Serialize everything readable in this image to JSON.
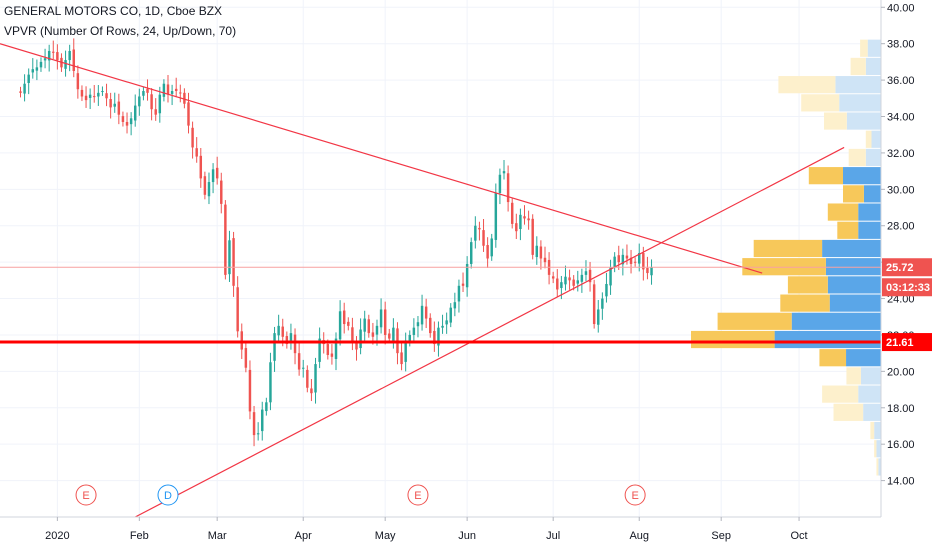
{
  "header": {
    "symbol_line": "GENERAL MOTORS CO, 1D, Cboe BZX",
    "indicator_line": "VPVR (Number Of Rows, 24, Up/Down, 70)"
  },
  "colors": {
    "up": "#26a69a",
    "down": "#ef5350",
    "trendline": "#f23645",
    "last_price_badge": "#ef5350",
    "support_line": "#ff0000",
    "vp_up": "#5aa6e8",
    "vp_down": "#f7c85a",
    "vp_up_light": "#cfe4f6",
    "vp_down_light": "#fdf0cc"
  },
  "price_badges": {
    "last_price": "25.72",
    "countdown": "03:12:33",
    "level": "21.61"
  },
  "event_markers": [
    {
      "label": "E",
      "date_index": 16,
      "kind": "earnings"
    },
    {
      "label": "D",
      "date_index": 36,
      "kind": "dividend"
    },
    {
      "label": "E",
      "date_index": 97,
      "kind": "earnings"
    },
    {
      "label": "E",
      "date_index": 150,
      "kind": "earnings"
    }
  ],
  "chart_data": {
    "type": "candlestick",
    "y_axis": {
      "ticks": [
        "14.00",
        "16.00",
        "18.00",
        "20.00",
        "22.00",
        "24.00",
        "26.00",
        "28.00",
        "30.00",
        "32.00",
        "34.00",
        "36.00",
        "38.00",
        "40.00"
      ],
      "range": [
        12,
        40.4
      ]
    },
    "x_axis": {
      "ticks": [
        {
          "label": "2020",
          "index": 9
        },
        {
          "label": "Feb",
          "index": 29
        },
        {
          "label": "Mar",
          "index": 48
        },
        {
          "label": "Apr",
          "index": 69
        },
        {
          "label": "May",
          "index": 89
        },
        {
          "label": "Jun",
          "index": 109
        },
        {
          "label": "Jul",
          "index": 130
        },
        {
          "label": "Aug",
          "index": 151
        },
        {
          "label": "Sep",
          "index": 171
        },
        {
          "label": "Oct",
          "index": 190
        }
      ],
      "range": [
        -5,
        210
      ]
    },
    "closes": [
      35.3,
      35.8,
      36.3,
      36.6,
      36.7,
      37.0,
      37.2,
      37.6,
      37.5,
      37.1,
      36.7,
      37.1,
      37.6,
      36.5,
      35.5,
      35.1,
      34.9,
      35.2,
      35.1,
      35.3,
      35.4,
      35.0,
      34.5,
      34.7,
      34.1,
      33.7,
      33.5,
      33.9,
      34.6,
      35.1,
      35.4,
      35.3,
      34.4,
      34.1,
      35.2,
      35.8,
      35.2,
      35.4,
      35.4,
      35.3,
      34.7,
      33.5,
      32.3,
      31.8,
      30.6,
      29.7,
      30.4,
      31.1,
      30.6,
      29.2,
      25.3,
      27.2,
      24.7,
      22.2,
      21.2,
      20.2,
      17.8,
      16.5,
      16.6,
      17.9,
      18.3,
      20.5,
      22.1,
      22.5,
      21.9,
      21.5,
      22.1,
      21.0,
      20.1,
      20.2,
      19.1,
      18.8,
      20.4,
      21.8,
      21.5,
      20.9,
      20.8,
      21.8,
      23.3,
      22.6,
      22.5,
      21.6,
      21.2,
      22.3,
      22.9,
      22.1,
      21.9,
      22.5,
      23.4,
      22.0,
      21.8,
      22.4,
      21.0,
      20.4,
      21.7,
      22.0,
      22.4,
      22.7,
      23.6,
      22.9,
      22.1,
      21.5,
      22.4,
      22.5,
      22.8,
      23.5,
      23.8,
      24.7,
      24.7,
      25.9,
      27.1,
      28.0,
      27.8,
      26.9,
      26.2,
      27.3,
      29.8,
      30.8,
      31.0,
      29.3,
      28.1,
      27.7,
      28.6,
      28.4,
      28.3,
      26.4,
      26.9,
      26.2,
      26.0,
      25.3,
      25.1,
      24.5,
      24.9,
      25.2,
      25.0,
      24.7,
      25.0,
      25.3,
      25.5,
      24.9,
      22.6,
      23.4,
      24.0,
      24.8,
      25.7,
      26.3,
      26.0,
      26.4,
      26.2,
      25.9,
      26.0,
      26.5,
      25.6,
      25.4,
      25.72
    ],
    "volume_profile": [
      {
        "price": 14.75,
        "up": 0.7,
        "down": 0.5,
        "in_range": false
      },
      {
        "price": 15.75,
        "up": 1.2,
        "down": 0.6,
        "in_range": false
      },
      {
        "price": 16.75,
        "up": 1.8,
        "down": 1.0,
        "in_range": false
      },
      {
        "price": 17.75,
        "up": 4.7,
        "down": 7.8,
        "in_range": false
      },
      {
        "price": 18.75,
        "up": 6.0,
        "down": 9.5,
        "in_range": false
      },
      {
        "price": 19.75,
        "up": 5.3,
        "down": 3.8,
        "in_range": false
      },
      {
        "price": 20.75,
        "up": 9.2,
        "down": 7.0,
        "in_range": true
      },
      {
        "price": 21.75,
        "up": 28.0,
        "down": 22.0,
        "in_range": true
      },
      {
        "price": 22.75,
        "up": 23.5,
        "down": 19.5,
        "in_range": true
      },
      {
        "price": 23.75,
        "up": 13.5,
        "down": 13.0,
        "in_range": true
      },
      {
        "price": 24.75,
        "up": 14.0,
        "down": 10.5,
        "in_range": true
      },
      {
        "price": 25.75,
        "up": 14.5,
        "down": 22.0,
        "in_range": true
      },
      {
        "price": 26.75,
        "up": 15.5,
        "down": 18.0,
        "in_range": true
      },
      {
        "price": 27.75,
        "up": 6.0,
        "down": 5.5,
        "in_range": true
      },
      {
        "price": 28.75,
        "up": 6.0,
        "down": 8.0,
        "in_range": true
      },
      {
        "price": 29.75,
        "up": 4.5,
        "down": 5.5,
        "in_range": true
      },
      {
        "price": 30.75,
        "up": 10.0,
        "down": 9.0,
        "in_range": true
      },
      {
        "price": 31.75,
        "up": 4.0,
        "down": 4.5,
        "in_range": false
      },
      {
        "price": 32.75,
        "up": 2.5,
        "down": 1.5,
        "in_range": false
      },
      {
        "price": 33.75,
        "up": 9.0,
        "down": 6.0,
        "in_range": false
      },
      {
        "price": 34.75,
        "up": 11.0,
        "down": 10.0,
        "in_range": false
      },
      {
        "price": 35.75,
        "up": 12.0,
        "down": 15.0,
        "in_range": false
      },
      {
        "price": 36.75,
        "up": 4.0,
        "down": 4.0,
        "in_range": false
      },
      {
        "price": 37.75,
        "up": 3.5,
        "down": 2.0,
        "in_range": false
      }
    ],
    "trendlines": [
      {
        "name": "descending",
        "from": [
          -5,
          38.0
        ],
        "to": [
          181,
          25.4
        ]
      },
      {
        "name": "ascending",
        "from": [
          28,
          12.0
        ],
        "to": [
          201,
          32.3
        ]
      }
    ],
    "horizontal_lines": [
      {
        "price": 25.72,
        "style": "thin"
      },
      {
        "price": 21.61,
        "style": "thick"
      }
    ]
  }
}
